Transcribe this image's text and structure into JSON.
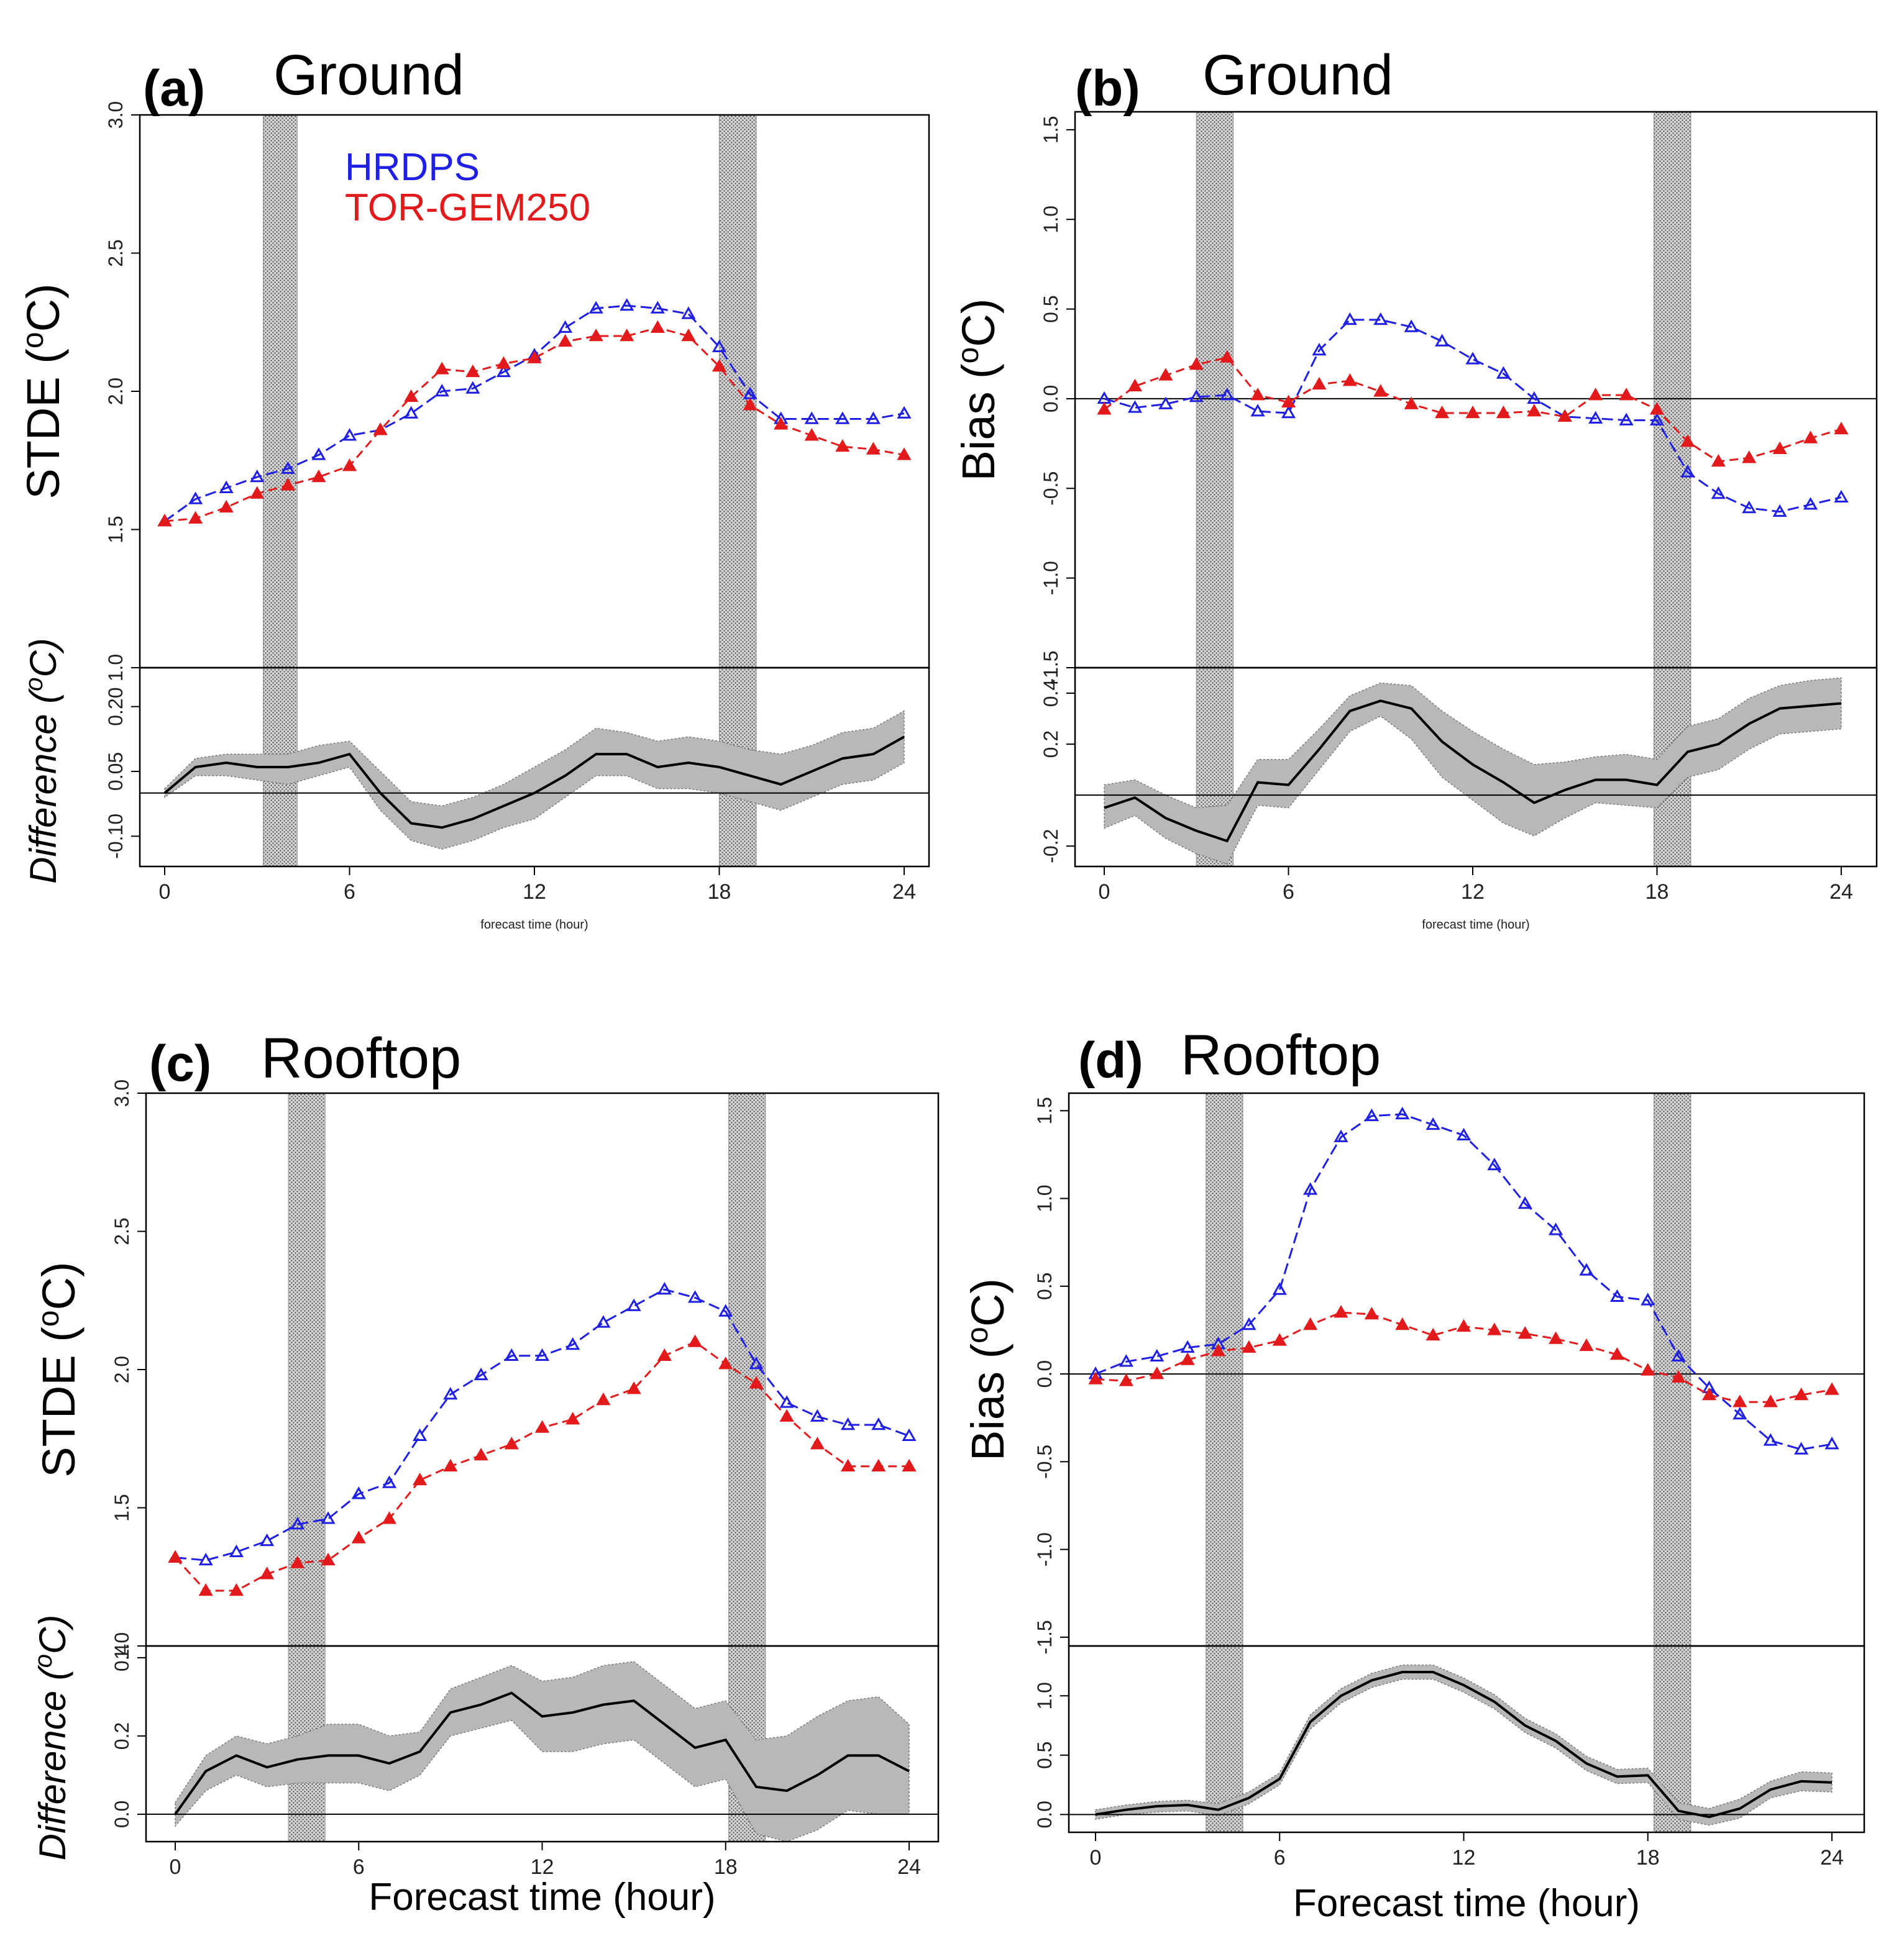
{
  "colors": {
    "hrdps": "#1f1fe6",
    "tor": "#e31a1c",
    "band": "#b8b8b8",
    "line": "#000000",
    "shade": "#d0d0d0"
  },
  "legend": {
    "hrdps": "HRDPS",
    "tor": "TOR-GEM250"
  },
  "chart_data": [
    {
      "id": "a",
      "letter": "(a)",
      "title": "Ground",
      "type": "line",
      "ylabel": "STDE (",
      "ylabel_sup": "o",
      "ylabel_end": "C)",
      "dlabel": "Difference (",
      "dlabel_sup": "o",
      "dlabel_end": "C)",
      "xlabel": "forecast time (hour)",
      "xticks": [
        "0",
        "6",
        "12",
        "18",
        "24"
      ],
      "yticks": [
        "1.0",
        "1.5",
        "2.0",
        "2.5",
        "3.0"
      ],
      "dticks": [
        "-0.10",
        "0.05",
        "0.20"
      ],
      "ylim": [
        1.0,
        3.0
      ],
      "dlim": [
        -0.17,
        0.29
      ],
      "dticks_vals": [
        -0.1,
        0.05,
        0.2
      ],
      "yticks_vals": [
        1.0,
        1.5,
        2.0,
        2.5,
        3.0
      ],
      "shaded_hours": [
        [
          3.2,
          4.3
        ],
        [
          18.0,
          19.2
        ]
      ],
      "zero_line_main": false,
      "series": [
        {
          "name": "HRDPS",
          "values": [
            1.53,
            1.61,
            1.65,
            1.69,
            1.72,
            1.77,
            1.84,
            1.86,
            1.92,
            2.0,
            2.01,
            2.07,
            2.13,
            2.23,
            2.3,
            2.31,
            2.3,
            2.28,
            2.16,
            1.99,
            1.9,
            1.9,
            1.9,
            1.9,
            1.92
          ]
        },
        {
          "name": "TOR-GEM250",
          "values": [
            1.53,
            1.54,
            1.58,
            1.63,
            1.66,
            1.69,
            1.73,
            1.86,
            1.98,
            2.08,
            2.07,
            2.1,
            2.12,
            2.18,
            2.2,
            2.2,
            2.23,
            2.2,
            2.09,
            1.95,
            1.88,
            1.84,
            1.8,
            1.79,
            1.77
          ]
        }
      ],
      "difference": {
        "values": [
          0.0,
          0.06,
          0.07,
          0.06,
          0.06,
          0.07,
          0.09,
          0.0,
          -0.07,
          -0.08,
          -0.06,
          -0.03,
          0.0,
          0.04,
          0.09,
          0.09,
          0.06,
          0.07,
          0.06,
          0.04,
          0.02,
          0.05,
          0.08,
          0.09,
          0.13
        ],
        "upper": [
          0.01,
          0.08,
          0.09,
          0.09,
          0.09,
          0.11,
          0.12,
          0.05,
          -0.02,
          -0.03,
          -0.01,
          0.02,
          0.06,
          0.1,
          0.15,
          0.14,
          0.12,
          0.13,
          0.12,
          0.1,
          0.09,
          0.11,
          0.14,
          0.15,
          0.19
        ],
        "lower": [
          -0.01,
          0.04,
          0.04,
          0.03,
          0.02,
          0.04,
          0.06,
          -0.04,
          -0.11,
          -0.13,
          -0.11,
          -0.08,
          -0.06,
          -0.01,
          0.04,
          0.04,
          0.01,
          0.01,
          0.0,
          -0.02,
          -0.04,
          -0.01,
          0.02,
          0.03,
          0.07
        ]
      }
    },
    {
      "id": "b",
      "letter": "(b)",
      "title": "Ground",
      "type": "line",
      "ylabel": "Bias (",
      "ylabel_sup": "o",
      "ylabel_end": "C)",
      "dlabel": "",
      "dlabel_sup": "",
      "dlabel_end": "",
      "xlabel": "forecast time (hour)",
      "xticks": [
        "0",
        "6",
        "12",
        "18",
        "24"
      ],
      "yticks": [
        "-1.5",
        "-1.0",
        "-0.5",
        "0.0",
        "0.5",
        "1.0",
        "1.5"
      ],
      "dticks": [
        "-0.2",
        "0.2",
        "0.4"
      ],
      "ylim": [
        -1.5,
        1.6
      ],
      "dlim": [
        -0.28,
        0.5
      ],
      "dticks_vals": [
        -0.2,
        0.2,
        0.4
      ],
      "yticks_vals": [
        -1.5,
        -1.0,
        -0.5,
        0.0,
        0.5,
        1.0,
        1.5
      ],
      "shaded_hours": [
        [
          3.0,
          4.2
        ],
        [
          17.9,
          19.1
        ]
      ],
      "zero_line_main": true,
      "series": [
        {
          "name": "HRDPS",
          "values": [
            0.0,
            -0.05,
            -0.03,
            0.01,
            0.02,
            -0.07,
            -0.08,
            0.27,
            0.44,
            0.44,
            0.4,
            0.32,
            0.22,
            0.14,
            0.0,
            -0.1,
            -0.11,
            -0.12,
            -0.12,
            -0.41,
            -0.53,
            -0.61,
            -0.63,
            -0.59,
            -0.55
          ]
        },
        {
          "name": "TOR-GEM250",
          "values": [
            -0.06,
            0.07,
            0.13,
            0.19,
            0.23,
            0.02,
            -0.02,
            0.08,
            0.1,
            0.04,
            -0.03,
            -0.08,
            -0.08,
            -0.08,
            -0.07,
            -0.1,
            0.02,
            0.02,
            -0.06,
            -0.24,
            -0.35,
            -0.33,
            -0.28,
            -0.22,
            -0.17
          ]
        }
      ],
      "difference": {
        "values": [
          -0.05,
          -0.01,
          -0.09,
          -0.14,
          -0.18,
          0.05,
          0.04,
          0.18,
          0.33,
          0.37,
          0.34,
          0.21,
          0.12,
          0.05,
          -0.03,
          0.02,
          0.06,
          0.06,
          0.04,
          0.17,
          0.2,
          0.28,
          0.34,
          0.35,
          0.36
        ],
        "upper": [
          0.04,
          0.06,
          0.0,
          -0.05,
          -0.04,
          0.14,
          0.14,
          0.26,
          0.39,
          0.44,
          0.43,
          0.33,
          0.25,
          0.18,
          0.12,
          0.13,
          0.15,
          0.16,
          0.14,
          0.27,
          0.3,
          0.38,
          0.43,
          0.45,
          0.46
        ],
        "lower": [
          -0.13,
          -0.08,
          -0.17,
          -0.23,
          -0.27,
          -0.04,
          -0.05,
          0.1,
          0.25,
          0.31,
          0.22,
          0.07,
          -0.02,
          -0.11,
          -0.16,
          -0.09,
          -0.03,
          -0.04,
          -0.05,
          0.07,
          0.1,
          0.18,
          0.24,
          0.25,
          0.26
        ]
      }
    },
    {
      "id": "c",
      "letter": "(c)",
      "title": "Rooftop",
      "type": "line",
      "ylabel": "STDE (",
      "ylabel_sup": "o",
      "ylabel_end": "C)",
      "dlabel": "Difference (",
      "dlabel_sup": "o",
      "dlabel_end": "C)",
      "xlabel": "Forecast time (hour)",
      "xticks": [
        "0",
        "6",
        "12",
        "18",
        "24"
      ],
      "yticks": [
        "1.0",
        "1.5",
        "2.0",
        "2.5",
        "3.0"
      ],
      "dticks": [
        "0.0",
        "0.2",
        "0.4"
      ],
      "ylim": [
        1.0,
        3.0
      ],
      "dlim": [
        -0.07,
        0.43
      ],
      "dticks_vals": [
        0.0,
        0.2,
        0.4
      ],
      "yticks_vals": [
        1.0,
        1.5,
        2.0,
        2.5,
        3.0
      ],
      "shaded_hours": [
        [
          3.7,
          4.9
        ],
        [
          18.1,
          19.3
        ]
      ],
      "zero_line_main": false,
      "series": [
        {
          "name": "HRDPS",
          "values": [
            1.32,
            1.31,
            1.34,
            1.38,
            1.44,
            1.46,
            1.55,
            1.59,
            1.76,
            1.91,
            1.98,
            2.05,
            2.05,
            2.09,
            2.17,
            2.23,
            2.29,
            2.26,
            2.21,
            2.02,
            1.88,
            1.83,
            1.8,
            1.8,
            1.76
          ]
        },
        {
          "name": "TOR-GEM250",
          "values": [
            1.32,
            1.2,
            1.2,
            1.26,
            1.3,
            1.31,
            1.39,
            1.46,
            1.6,
            1.65,
            1.69,
            1.73,
            1.79,
            1.82,
            1.89,
            1.93,
            2.05,
            2.1,
            2.02,
            1.95,
            1.83,
            1.73,
            1.65,
            1.65,
            1.65
          ]
        }
      ],
      "difference": {
        "values": [
          0.0,
          0.11,
          0.15,
          0.12,
          0.14,
          0.15,
          0.15,
          0.13,
          0.16,
          0.26,
          0.28,
          0.31,
          0.25,
          0.26,
          0.28,
          0.29,
          0.23,
          0.17,
          0.19,
          0.07,
          0.06,
          0.1,
          0.15,
          0.15,
          0.11
        ],
        "upper": [
          0.03,
          0.15,
          0.2,
          0.18,
          0.2,
          0.23,
          0.23,
          0.2,
          0.21,
          0.32,
          0.35,
          0.38,
          0.34,
          0.35,
          0.38,
          0.39,
          0.33,
          0.27,
          0.29,
          0.19,
          0.2,
          0.25,
          0.29,
          0.3,
          0.23
        ],
        "lower": [
          -0.03,
          0.06,
          0.1,
          0.07,
          0.08,
          0.08,
          0.08,
          0.06,
          0.1,
          0.2,
          0.22,
          0.24,
          0.16,
          0.16,
          0.18,
          0.19,
          0.13,
          0.07,
          0.09,
          -0.05,
          -0.07,
          -0.04,
          0.01,
          0.0,
          0.0
        ]
      }
    },
    {
      "id": "d",
      "letter": "(d)",
      "title": "Rooftop",
      "type": "line",
      "ylabel": "Bias (",
      "ylabel_sup": "o",
      "ylabel_end": "C)",
      "dlabel": "",
      "dlabel_sup": "",
      "dlabel_end": "",
      "xlabel": "Forecast time (hour)",
      "xticks": [
        "0",
        "6",
        "12",
        "18",
        "24"
      ],
      "yticks": [
        "-1.5",
        "-1.0",
        "-0.5",
        "0.0",
        "0.5",
        "1.0",
        "1.5"
      ],
      "dticks": [
        "0.0",
        "0.5",
        "1.0"
      ],
      "ylim": [
        -1.55,
        1.6
      ],
      "dlim": [
        -0.15,
        1.42
      ],
      "dticks_vals": [
        0.0,
        0.5,
        1.0
      ],
      "yticks_vals": [
        -1.5,
        -1.0,
        -0.5,
        0.0,
        0.5,
        1.0,
        1.5
      ],
      "shaded_hours": [
        [
          3.6,
          4.8
        ],
        [
          18.2,
          19.4
        ]
      ],
      "zero_line_main": true,
      "series": [
        {
          "name": "HRDPS",
          "values": [
            0.0,
            0.07,
            0.1,
            0.15,
            0.17,
            0.28,
            0.48,
            1.05,
            1.35,
            1.47,
            1.48,
            1.42,
            1.36,
            1.19,
            0.97,
            0.82,
            0.59,
            0.44,
            0.42,
            0.1,
            -0.08,
            -0.23,
            -0.38,
            -0.43,
            -0.4
          ]
        },
        {
          "name": "TOR-GEM250",
          "values": [
            -0.03,
            -0.04,
            0.0,
            0.08,
            0.13,
            0.15,
            0.19,
            0.28,
            0.35,
            0.34,
            0.28,
            0.22,
            0.27,
            0.25,
            0.23,
            0.2,
            0.16,
            0.11,
            0.02,
            -0.02,
            -0.12,
            -0.16,
            -0.16,
            -0.12,
            -0.09
          ]
        }
      ],
      "difference": {
        "values": [
          0.0,
          0.04,
          0.07,
          0.08,
          0.04,
          0.14,
          0.3,
          0.78,
          1.0,
          1.13,
          1.2,
          1.2,
          1.09,
          0.95,
          0.75,
          0.62,
          0.43,
          0.32,
          0.33,
          0.03,
          -0.02,
          0.05,
          0.21,
          0.28,
          0.27
        ],
        "upper": [
          0.04,
          0.08,
          0.11,
          0.12,
          0.09,
          0.19,
          0.35,
          0.84,
          1.06,
          1.19,
          1.26,
          1.26,
          1.15,
          1.01,
          0.81,
          0.68,
          0.49,
          0.38,
          0.39,
          0.1,
          0.05,
          0.13,
          0.28,
          0.36,
          0.35
        ],
        "lower": [
          -0.04,
          0.0,
          0.02,
          0.03,
          -0.01,
          0.09,
          0.25,
          0.72,
          0.94,
          1.07,
          1.14,
          1.14,
          1.03,
          0.89,
          0.69,
          0.56,
          0.37,
          0.26,
          0.27,
          -0.04,
          -0.09,
          -0.03,
          0.14,
          0.2,
          0.19
        ]
      }
    }
  ]
}
